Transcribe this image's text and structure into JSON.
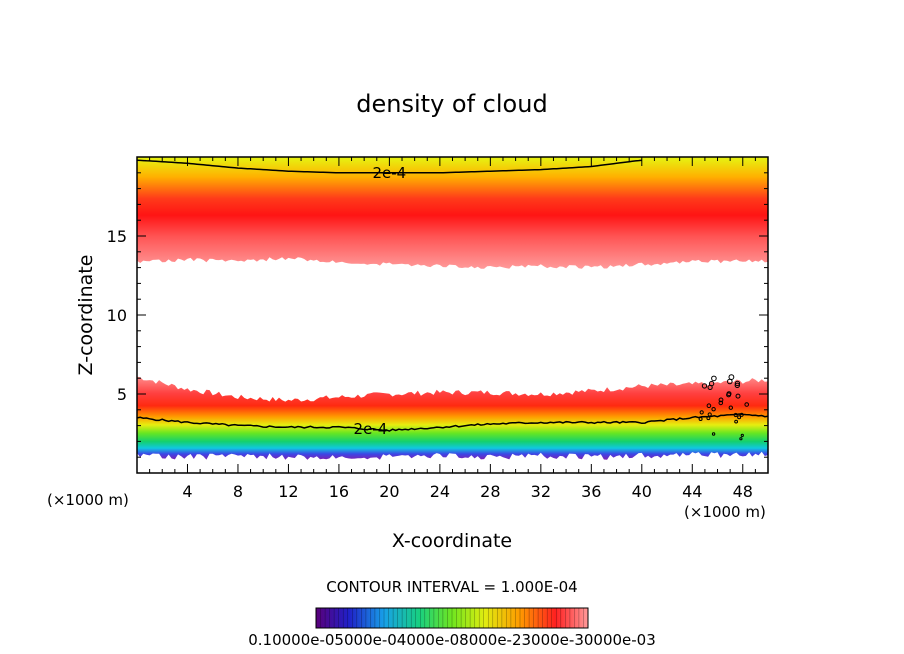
{
  "chart_data": {
    "type": "contour",
    "title": "density of cloud",
    "xlabel": "X-coordinate",
    "ylabel": "Z-coordinate",
    "x_unit_left": "(×1000 m)",
    "x_unit_right": "(×1000 m)",
    "xlim": [
      0,
      50
    ],
    "ylim": [
      0,
      20
    ],
    "x_ticks": [
      4,
      8,
      12,
      16,
      20,
      24,
      28,
      32,
      36,
      40,
      44,
      48
    ],
    "y_ticks": [
      5,
      10,
      15
    ],
    "contour_interval_text": "CONTOUR INTERVAL = 1.000E-04",
    "colorbar_labels_text": "0.10000e-05000e-04000e-08000e-23000e-30000e-03",
    "colorbar_range": [
      0.0,
      0.0003
    ],
    "contour_labels": [
      {
        "text": "2e-4",
        "x": 18.5,
        "y": 19.0
      },
      {
        "text": "2e-4",
        "x": 17.0,
        "y": 2.8
      }
    ],
    "upper_layer": {
      "base": [
        [
          0,
          13.4
        ],
        [
          4,
          13.5
        ],
        [
          8,
          13.4
        ],
        [
          12,
          13.6
        ],
        [
          16,
          13.4
        ],
        [
          20,
          13.2
        ],
        [
          24,
          13.1
        ],
        [
          28,
          13.0
        ],
        [
          32,
          13.1
        ],
        [
          36,
          13.0
        ],
        [
          40,
          13.2
        ],
        [
          44,
          13.4
        ],
        [
          48,
          13.4
        ],
        [
          50,
          13.4
        ]
      ],
      "peak": [
        [
          0,
          15.5
        ],
        [
          10,
          15.6
        ],
        [
          20,
          15.5
        ],
        [
          30,
          15.5
        ],
        [
          40,
          15.6
        ],
        [
          50,
          15.5
        ]
      ],
      "contour_2e4": [
        [
          0,
          19.8
        ],
        [
          4,
          19.6
        ],
        [
          8,
          19.3
        ],
        [
          12,
          19.1
        ],
        [
          16,
          19.0
        ],
        [
          20,
          19.0
        ],
        [
          24,
          19.0
        ],
        [
          28,
          19.1
        ],
        [
          32,
          19.2
        ],
        [
          36,
          19.4
        ],
        [
          40,
          19.8
        ]
      ]
    },
    "lower_layer": {
      "top": [
        [
          0,
          6.1
        ],
        [
          4,
          5.3
        ],
        [
          8,
          4.8
        ],
        [
          12,
          4.6
        ],
        [
          16,
          4.8
        ],
        [
          20,
          5.0
        ],
        [
          24,
          5.1
        ],
        [
          28,
          5.1
        ],
        [
          32,
          5.0
        ],
        [
          36,
          5.2
        ],
        [
          40,
          5.5
        ],
        [
          44,
          5.6
        ],
        [
          48,
          5.8
        ],
        [
          50,
          5.9
        ]
      ],
      "peak": [
        [
          0,
          4.2
        ],
        [
          10,
          3.8
        ],
        [
          20,
          3.9
        ],
        [
          30,
          4.0
        ],
        [
          40,
          4.1
        ],
        [
          50,
          4.0
        ]
      ],
      "contour_2e4": [
        [
          0,
          3.5
        ],
        [
          4,
          3.2
        ],
        [
          8,
          3.0
        ],
        [
          12,
          2.9
        ],
        [
          16,
          2.9
        ],
        [
          20,
          2.7
        ],
        [
          24,
          2.9
        ],
        [
          28,
          3.1
        ],
        [
          32,
          3.2
        ],
        [
          36,
          3.2
        ],
        [
          40,
          3.2
        ],
        [
          44,
          3.5
        ],
        [
          48,
          3.7
        ],
        [
          50,
          3.6
        ]
      ],
      "bottom": [
        [
          0,
          1.2
        ],
        [
          4,
          1.0
        ],
        [
          8,
          1.1
        ],
        [
          12,
          1.0
        ],
        [
          16,
          1.1
        ],
        [
          20,
          1.0
        ],
        [
          24,
          1.1
        ],
        [
          28,
          1.0
        ],
        [
          32,
          1.1
        ],
        [
          36,
          1.0
        ],
        [
          40,
          1.1
        ],
        [
          44,
          1.2
        ],
        [
          48,
          1.1
        ],
        [
          50,
          1.2
        ]
      ]
    }
  }
}
